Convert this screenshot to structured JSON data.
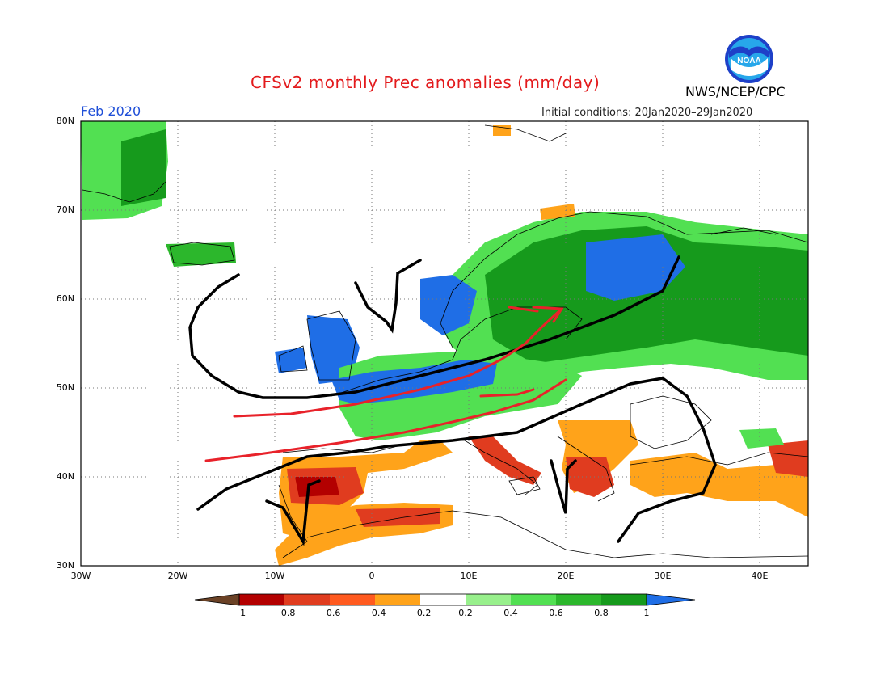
{
  "header": {
    "title": "CFSv2 monthly Prec anomalies (mm/day)",
    "month": "Feb 2020",
    "initial_conditions": "Initial conditions: 20Jan2020–29Jan2020",
    "agency": "NWS/NCEP/CPC",
    "logo_text": "NOAA"
  },
  "map": {
    "lon_range": [
      -30,
      45
    ],
    "lat_range": [
      30,
      80
    ],
    "lat_ticks": [
      "30N",
      "40N",
      "50N",
      "60N",
      "70N",
      "80N"
    ],
    "lon_ticks": [
      "30W",
      "20W",
      "10W",
      "0",
      "10E",
      "20E",
      "30E",
      "40E"
    ],
    "gridlines": true
  },
  "colorbar": {
    "ticks": [
      "−1",
      "−0.8",
      "−0.6",
      "−0.4",
      "−0.2",
      "0.2",
      "0.4",
      "0.6",
      "0.8",
      "1"
    ],
    "colors": [
      "#6b4226",
      "#b30000",
      "#e03c1f",
      "#ff5a1f",
      "#ffa31a",
      "#ffffff",
      "#98f08c",
      "#52e052",
      "#2cb72c",
      "#169a1c",
      "#1f6ee6"
    ]
  }
}
